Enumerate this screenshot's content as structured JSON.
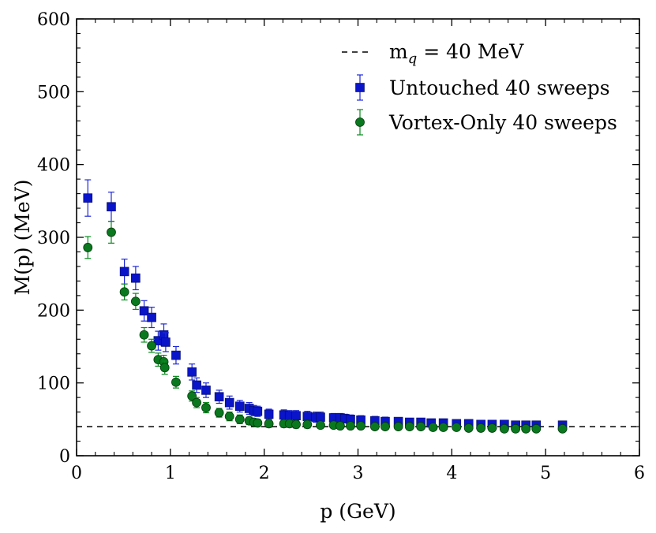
{
  "chart_data": {
    "type": "scatter",
    "title": "",
    "xlabel": "p (GeV)",
    "ylabel": "M(p) (MeV)",
    "xlim": [
      0,
      6
    ],
    "ylim": [
      0,
      600
    ],
    "xticks": [
      0,
      1,
      2,
      3,
      4,
      5,
      6
    ],
    "yticks": [
      0,
      100,
      200,
      300,
      400,
      500,
      600
    ],
    "grid": false,
    "legend_position": "top-right",
    "reference_line": {
      "name_main": "m",
      "name_sub": "q",
      "name_rest": " = 40 MeV",
      "y": 40,
      "style": "dashed",
      "color": "#000000"
    },
    "series": [
      {
        "name": "Untouched 40 sweeps",
        "marker": "square",
        "color": "#0a14c8",
        "errcolor": "#1e28d8",
        "x": [
          0.12,
          0.37,
          0.51,
          0.63,
          0.72,
          0.8,
          0.87,
          0.93,
          0.95,
          1.06,
          1.23,
          1.28,
          1.38,
          1.52,
          1.63,
          1.74,
          1.84,
          1.89,
          1.93,
          2.05,
          2.21,
          2.27,
          2.34,
          2.46,
          2.55,
          2.6,
          2.74,
          2.81,
          2.86,
          2.92,
          3.03,
          3.18,
          3.29,
          3.43,
          3.55,
          3.67,
          3.78,
          3.91,
          4.05,
          4.18,
          4.31,
          4.43,
          4.56,
          4.68,
          4.79,
          4.9,
          5.18
        ],
        "y": [
          354,
          342,
          253,
          244,
          199,
          190,
          158,
          166,
          156,
          138,
          115,
          97,
          90,
          81,
          73,
          68,
          65,
          62,
          61,
          57,
          56,
          55,
          55,
          54,
          53,
          53,
          52,
          52,
          51,
          50,
          49,
          48,
          47,
          47,
          46,
          46,
          45,
          45,
          44,
          44,
          43,
          43,
          43,
          42,
          42,
          42,
          42
        ],
        "err": [
          25,
          20,
          17,
          16,
          14,
          14,
          13,
          15,
          13,
          12,
          11,
          10,
          10,
          9,
          9,
          8,
          8,
          7,
          7,
          7,
          7,
          7,
          7,
          7,
          7,
          7,
          6,
          6,
          6,
          6,
          6,
          6,
          6,
          5,
          5,
          5,
          5,
          5,
          5,
          5,
          5,
          5,
          4,
          4,
          4,
          4,
          4
        ]
      },
      {
        "name": "Vortex-Only 40 sweeps",
        "marker": "circle",
        "color": "#0a781e",
        "errcolor": "#0a8a1e",
        "x": [
          0.12,
          0.37,
          0.51,
          0.63,
          0.72,
          0.8,
          0.87,
          0.93,
          0.94,
          1.06,
          1.23,
          1.28,
          1.38,
          1.52,
          1.63,
          1.74,
          1.84,
          1.89,
          1.93,
          2.05,
          2.21,
          2.27,
          2.34,
          2.46,
          2.6,
          2.74,
          2.81,
          2.92,
          3.03,
          3.18,
          3.29,
          3.43,
          3.55,
          3.67,
          3.8,
          3.91,
          4.05,
          4.18,
          4.31,
          4.43,
          4.56,
          4.68,
          4.79,
          4.9,
          5.18
        ],
        "y": [
          286,
          307,
          225,
          212,
          166,
          151,
          132,
          129,
          121,
          101,
          82,
          73,
          66,
          59,
          54,
          50,
          48,
          46,
          45,
          44,
          44,
          44,
          43,
          43,
          42,
          42,
          41,
          41,
          41,
          40,
          40,
          40,
          40,
          40,
          39,
          39,
          39,
          38,
          38,
          38,
          37,
          37,
          37,
          37,
          37
        ],
        "err": [
          15,
          15,
          11,
          11,
          10,
          9,
          9,
          9,
          9,
          8,
          7,
          7,
          7,
          6,
          6,
          6,
          5,
          5,
          5,
          5,
          5,
          5,
          5,
          5,
          4,
          4,
          4,
          4,
          4,
          4,
          4,
          4,
          4,
          4,
          4,
          4,
          4,
          4,
          4,
          4,
          4,
          4,
          4,
          4,
          4
        ]
      }
    ]
  }
}
